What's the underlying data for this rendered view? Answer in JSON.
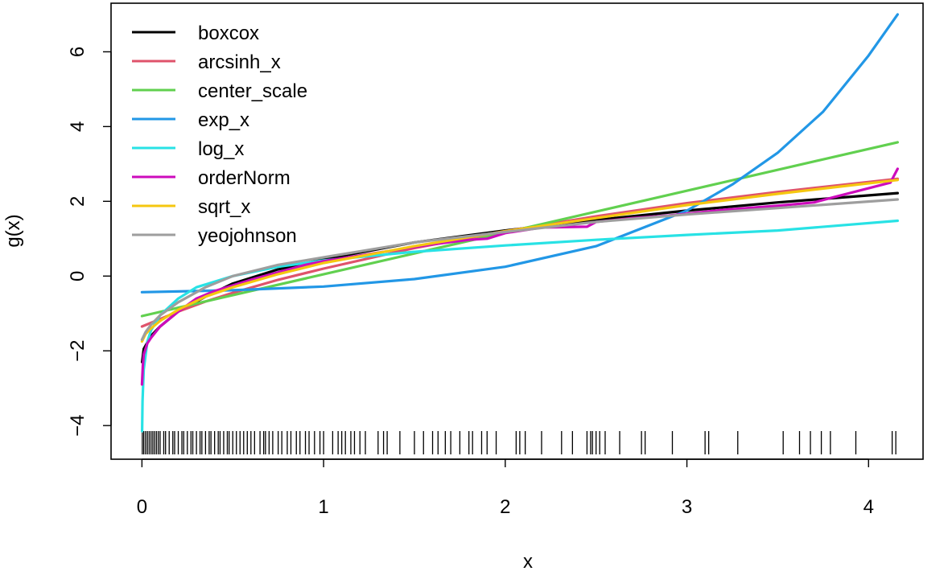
{
  "chart_data": {
    "type": "line",
    "title": "",
    "xlabel": "x",
    "ylabel": "g(x)",
    "xlim": [
      -0.17,
      4.3
    ],
    "ylim": [
      -4.9,
      7.3
    ],
    "xticks": [
      0,
      1,
      2,
      3,
      4
    ],
    "yticks": [
      -4,
      -2,
      0,
      2,
      4,
      6
    ],
    "grid": false,
    "legend_position": "top-left",
    "series": [
      {
        "name": "boxcox",
        "color": "#000000",
        "x": [
          0.001,
          0.01,
          0.05,
          0.1,
          0.2,
          0.35,
          0.5,
          0.75,
          1.0,
          1.5,
          2.0,
          2.5,
          3.0,
          3.5,
          4.16
        ],
        "y": [
          -2.3,
          -1.95,
          -1.6,
          -1.35,
          -0.95,
          -0.55,
          -0.2,
          0.18,
          0.45,
          0.9,
          1.22,
          1.5,
          1.75,
          1.97,
          2.22
        ]
      },
      {
        "name": "arcsinh_x",
        "color": "#DF536B",
        "x": [
          0.0,
          0.05,
          0.1,
          0.2,
          0.35,
          0.5,
          0.75,
          1.0,
          1.5,
          2.0,
          2.5,
          3.0,
          3.5,
          4.16
        ],
        "y": [
          -1.35,
          -1.25,
          -1.15,
          -0.95,
          -0.68,
          -0.45,
          -0.1,
          0.2,
          0.75,
          1.2,
          1.6,
          1.95,
          2.25,
          2.6
        ]
      },
      {
        "name": "center_scale",
        "color": "#61D04F",
        "x": [
          0.0,
          4.16
        ],
        "y": [
          -1.07,
          3.58
        ]
      },
      {
        "name": "exp_x",
        "color": "#2297E6",
        "x": [
          0.0,
          0.5,
          1.0,
          1.5,
          2.0,
          2.5,
          3.0,
          3.25,
          3.5,
          3.75,
          4.0,
          4.16
        ],
        "y": [
          -0.43,
          -0.38,
          -0.28,
          -0.08,
          0.25,
          0.8,
          1.75,
          2.45,
          3.3,
          4.4,
          5.9,
          7.0
        ]
      },
      {
        "name": "log_x",
        "color": "#28E2E5",
        "x": [
          0.001,
          0.003,
          0.01,
          0.03,
          0.05,
          0.1,
          0.2,
          0.3,
          0.5,
          0.75,
          1.0,
          1.5,
          2.0,
          2.5,
          3.0,
          3.5,
          4.16
        ],
        "y": [
          -4.15,
          -3.35,
          -2.5,
          -1.75,
          -1.45,
          -1.05,
          -0.6,
          -0.3,
          0.0,
          0.25,
          0.42,
          0.65,
          0.82,
          0.97,
          1.1,
          1.22,
          1.48
        ]
      },
      {
        "name": "orderNorm",
        "color": "#CD0BBC",
        "x": [
          0.0,
          0.005,
          0.01,
          0.03,
          0.05,
          0.1,
          0.2,
          0.3,
          0.4,
          0.5,
          0.6,
          0.75,
          0.9,
          1.0,
          1.2,
          1.4,
          1.6,
          1.8,
          1.9,
          2.0,
          2.2,
          2.45,
          2.5,
          2.7,
          2.9,
          3.0,
          3.2,
          3.5,
          3.7,
          3.8,
          4.0,
          4.12,
          4.16
        ],
        "y": [
          -2.9,
          -2.4,
          -2.1,
          -1.8,
          -1.65,
          -1.35,
          -0.95,
          -0.6,
          -0.4,
          -0.25,
          -0.1,
          0.1,
          0.3,
          0.4,
          0.55,
          0.7,
          0.85,
          0.97,
          1.0,
          1.15,
          1.3,
          1.32,
          1.45,
          1.55,
          1.62,
          1.67,
          1.77,
          1.88,
          1.97,
          2.1,
          2.35,
          2.5,
          2.87
        ]
      },
      {
        "name": "sqrt_x",
        "color": "#F5C710",
        "x": [
          0.0,
          0.02,
          0.05,
          0.1,
          0.2,
          0.35,
          0.5,
          0.75,
          1.0,
          1.5,
          2.0,
          2.5,
          3.0,
          3.5,
          4.16
        ],
        "y": [
          -1.75,
          -1.55,
          -1.4,
          -1.2,
          -0.9,
          -0.55,
          -0.3,
          0.05,
          0.35,
          0.8,
          1.2,
          1.55,
          1.9,
          2.2,
          2.57
        ]
      },
      {
        "name": "yeojohnson",
        "color": "#9E9E9E",
        "x": [
          0.0,
          0.02,
          0.05,
          0.1,
          0.2,
          0.35,
          0.5,
          0.75,
          1.0,
          1.5,
          2.0,
          2.5,
          3.0,
          3.5,
          4.16
        ],
        "y": [
          -1.7,
          -1.5,
          -1.3,
          -1.05,
          -0.7,
          -0.3,
          0.0,
          0.3,
          0.5,
          0.9,
          1.18,
          1.45,
          1.65,
          1.82,
          2.05
        ]
      }
    ],
    "rug": [
      0.002,
      0.01,
      0.02,
      0.03,
      0.04,
      0.05,
      0.06,
      0.07,
      0.08,
      0.09,
      0.1,
      0.12,
      0.13,
      0.15,
      0.17,
      0.18,
      0.2,
      0.22,
      0.23,
      0.25,
      0.27,
      0.28,
      0.3,
      0.32,
      0.33,
      0.35,
      0.37,
      0.38,
      0.4,
      0.42,
      0.43,
      0.45,
      0.47,
      0.48,
      0.5,
      0.52,
      0.54,
      0.56,
      0.58,
      0.6,
      0.62,
      0.65,
      0.67,
      0.68,
      0.7,
      0.72,
      0.75,
      0.77,
      0.8,
      0.82,
      0.85,
      0.87,
      0.9,
      0.92,
      0.95,
      0.98,
      1.0,
      1.05,
      1.08,
      1.1,
      1.12,
      1.15,
      1.17,
      1.2,
      1.23,
      1.3,
      1.33,
      1.35,
      1.42,
      1.5,
      1.55,
      1.6,
      1.63,
      1.67,
      1.7,
      1.75,
      1.8,
      1.82,
      1.87,
      1.9,
      1.95,
      2.06,
      2.08,
      2.11,
      2.2,
      2.31,
      2.37,
      2.45,
      2.47,
      2.48,
      2.5,
      2.52,
      2.55,
      2.63,
      2.75,
      2.77,
      2.92,
      3.1,
      3.12,
      3.28,
      3.53,
      3.62,
      3.68,
      3.74,
      3.79,
      3.93,
      4.13,
      4.15
    ]
  }
}
